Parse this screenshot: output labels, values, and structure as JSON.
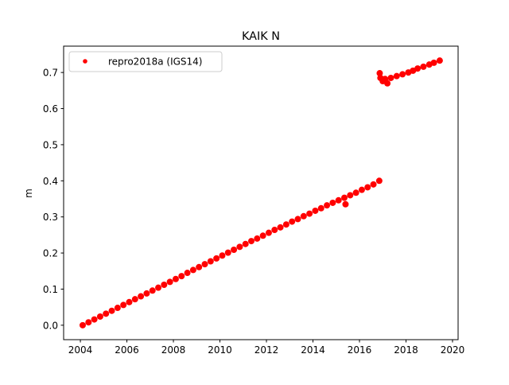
{
  "chart_data": {
    "type": "scatter",
    "title": "KAIK N",
    "xlabel": "",
    "ylabel": "m",
    "xlim": [
      2003.28,
      2020.24
    ],
    "ylim": [
      -0.04,
      0.773
    ],
    "xticks": [
      2004,
      2006,
      2008,
      2010,
      2012,
      2014,
      2016,
      2018,
      2020
    ],
    "yticks": [
      0.0,
      0.1,
      0.2,
      0.3,
      0.4,
      0.5,
      0.6,
      0.7
    ],
    "xtick_labels": [
      "2004",
      "2006",
      "2008",
      "2010",
      "2012",
      "2014",
      "2016",
      "2018",
      "2020"
    ],
    "ytick_labels": [
      "0.0",
      "0.1",
      "0.2",
      "0.3",
      "0.4",
      "0.5",
      "0.6",
      "0.7"
    ],
    "grid": false,
    "legend_position": "top-left",
    "series": [
      {
        "name": "repro2018a (IGS14)",
        "color": "#ff0000",
        "marker": "dot",
        "points": [
          [
            2004.1,
            0.0
          ],
          [
            2004.35,
            0.008
          ],
          [
            2004.6,
            0.016
          ],
          [
            2004.85,
            0.024
          ],
          [
            2005.1,
            0.032
          ],
          [
            2005.35,
            0.04
          ],
          [
            2005.6,
            0.048
          ],
          [
            2005.85,
            0.056
          ],
          [
            2006.1,
            0.064
          ],
          [
            2006.35,
            0.072
          ],
          [
            2006.6,
            0.08
          ],
          [
            2006.85,
            0.088
          ],
          [
            2007.1,
            0.096
          ],
          [
            2007.35,
            0.104
          ],
          [
            2007.6,
            0.112
          ],
          [
            2007.85,
            0.12
          ],
          [
            2008.1,
            0.128
          ],
          [
            2008.35,
            0.136
          ],
          [
            2008.6,
            0.145
          ],
          [
            2008.85,
            0.153
          ],
          [
            2009.1,
            0.161
          ],
          [
            2009.35,
            0.169
          ],
          [
            2009.6,
            0.177
          ],
          [
            2009.85,
            0.185
          ],
          [
            2010.1,
            0.193
          ],
          [
            2010.35,
            0.201
          ],
          [
            2010.6,
            0.209
          ],
          [
            2010.85,
            0.217
          ],
          [
            2011.1,
            0.225
          ],
          [
            2011.35,
            0.233
          ],
          [
            2011.6,
            0.24
          ],
          [
            2011.85,
            0.248
          ],
          [
            2012.1,
            0.256
          ],
          [
            2012.35,
            0.264
          ],
          [
            2012.6,
            0.271
          ],
          [
            2012.85,
            0.279
          ],
          [
            2013.1,
            0.287
          ],
          [
            2013.35,
            0.294
          ],
          [
            2013.6,
            0.302
          ],
          [
            2013.85,
            0.309
          ],
          [
            2014.1,
            0.317
          ],
          [
            2014.35,
            0.324
          ],
          [
            2014.6,
            0.332
          ],
          [
            2014.85,
            0.339
          ],
          [
            2015.1,
            0.346
          ],
          [
            2015.35,
            0.353
          ],
          [
            2015.4,
            0.335
          ],
          [
            2015.6,
            0.36
          ],
          [
            2015.85,
            0.367
          ],
          [
            2016.1,
            0.375
          ],
          [
            2016.35,
            0.382
          ],
          [
            2016.6,
            0.39
          ],
          [
            2016.85,
            0.4
          ],
          [
            2016.87,
            0.698
          ],
          [
            2016.9,
            0.685
          ],
          [
            2017.0,
            0.676
          ],
          [
            2017.1,
            0.682
          ],
          [
            2017.2,
            0.67
          ],
          [
            2017.35,
            0.685
          ],
          [
            2017.6,
            0.69
          ],
          [
            2017.85,
            0.695
          ],
          [
            2018.1,
            0.7
          ],
          [
            2018.3,
            0.705
          ],
          [
            2018.5,
            0.711
          ],
          [
            2018.75,
            0.716
          ],
          [
            2019.0,
            0.722
          ],
          [
            2019.2,
            0.727
          ],
          [
            2019.45,
            0.733
          ]
        ]
      }
    ]
  }
}
